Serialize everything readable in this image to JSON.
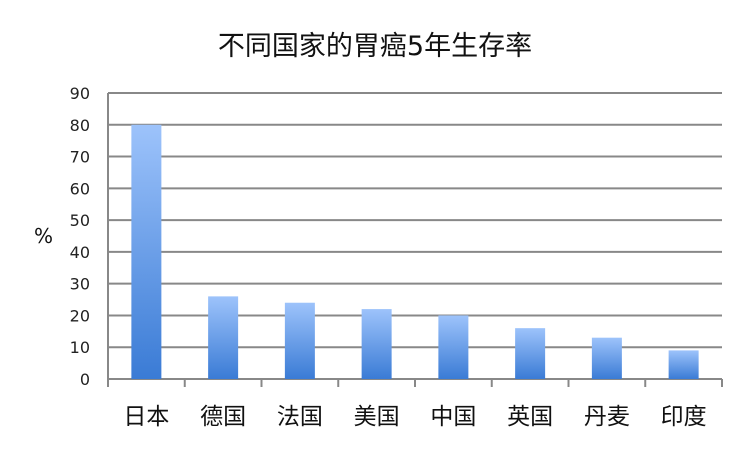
{
  "chart_data": {
    "type": "bar",
    "title": "不同国家的胃癌5年生存率",
    "xlabel": "",
    "ylabel": "%",
    "categories": [
      "日本",
      "德国",
      "法国",
      "美国",
      "中国",
      "英国",
      "丹麦",
      "印度"
    ],
    "values": [
      80,
      26,
      24,
      22,
      20,
      16,
      13,
      9
    ],
    "ylim": [
      0,
      90
    ],
    "yticks": [
      0,
      10,
      20,
      30,
      40,
      50,
      60,
      70,
      80,
      90
    ],
    "grid": true,
    "legend": "none",
    "colors": {
      "bar_top": "#9dc3fb",
      "bar_bottom": "#3a7bd5",
      "grid": "#888888"
    }
  }
}
